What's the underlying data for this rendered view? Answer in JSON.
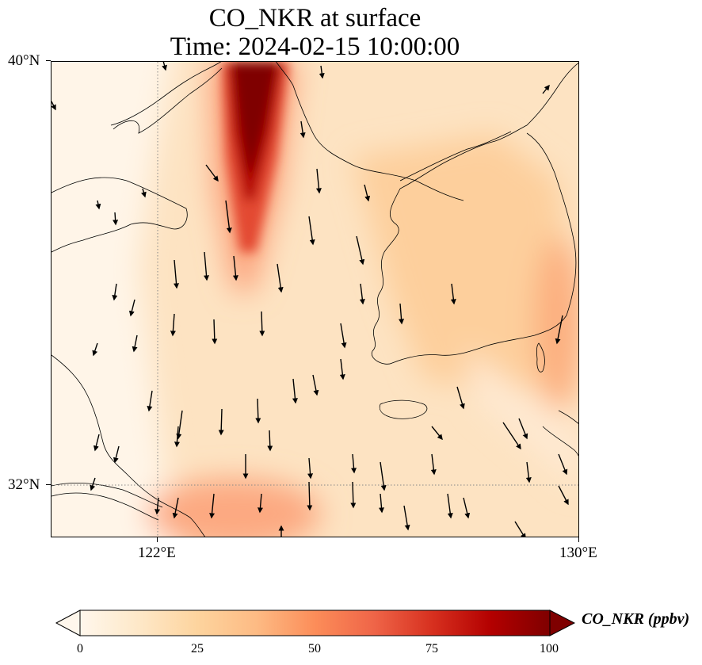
{
  "figure": {
    "title_line1": "CO_NKR at surface",
    "title_line2": "Time: 2024-02-15 10:00:00"
  },
  "map": {
    "lon_range": [
      120,
      130
    ],
    "lat_range": [
      31,
      40
    ],
    "lon_ticks": [
      {
        "value": 122,
        "label": "122°E"
      },
      {
        "value": 130,
        "label": "130°E"
      }
    ],
    "lat_ticks": [
      {
        "value": 40,
        "label": "40°N"
      },
      {
        "value": 32,
        "label": "32°N"
      }
    ],
    "gridlines": "dotted at 122°E and 32°N",
    "coastlines": true,
    "wind_vectors": "predominantly southward arrows across domain"
  },
  "colorbar": {
    "label": "CO_NKR (ppbv)",
    "min": 0,
    "max": 100,
    "extend": "both",
    "ticks": [
      "0",
      "25",
      "50",
      "75",
      "100"
    ],
    "colormap": "OrRd",
    "colors": [
      "#fff7ec",
      "#fee8c8",
      "#fdd49e",
      "#fdbb84",
      "#fc8d59",
      "#ef6548",
      "#d7301f",
      "#b30000",
      "#7f0000"
    ]
  },
  "chart_data": {
    "type": "heatmap",
    "variable": "CO_NKR",
    "units": "ppbv",
    "features": [
      {
        "name": "plume",
        "value_range": [
          60,
          100
        ]
      },
      {
        "name": "southern-plume",
        "value_range": [
          30,
          40
        ]
      },
      {
        "name": "east-coast-band",
        "value_range": [
          40,
          50
        ]
      },
      {
        "name": "korea-background",
        "value_range": [
          20,
          25
        ]
      },
      {
        "name": "west-clean-zone",
        "value_range": [
          0,
          5
        ]
      }
    ]
  }
}
